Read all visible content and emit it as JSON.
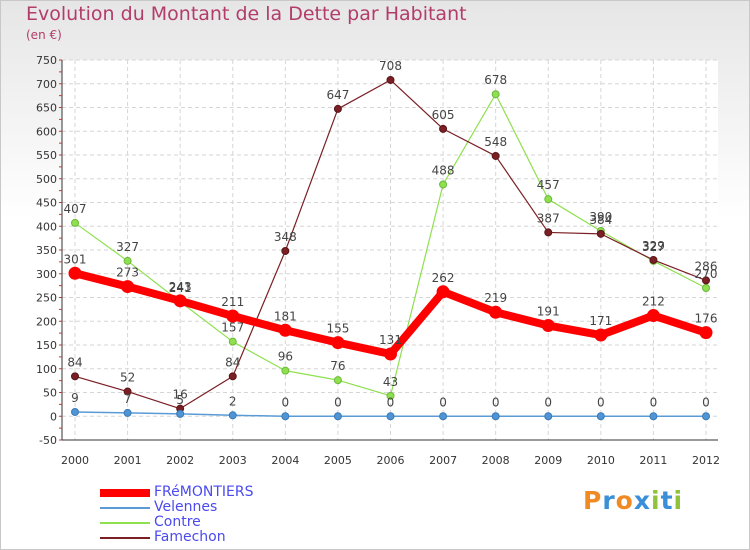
{
  "title": "Evolution du Montant de la Dette par Habitant",
  "unit": "(en €)",
  "logo": "Proxiti",
  "chart_data": {
    "type": "line",
    "title": "Evolution du Montant de la Dette par Habitant",
    "subtitle": "(en €)",
    "categories": [
      "2000",
      "2001",
      "2002",
      "2003",
      "2004",
      "2005",
      "2006",
      "2007",
      "2008",
      "2009",
      "2010",
      "2011",
      "2012"
    ],
    "y_ticks": [
      -50,
      0,
      50,
      100,
      150,
      200,
      250,
      300,
      350,
      400,
      450,
      500,
      550,
      600,
      650,
      700,
      750
    ],
    "ylim": [
      -50,
      750
    ],
    "grid": true,
    "legend_position": "bottom-left",
    "series": [
      {
        "name": "FRéMONTIERS",
        "color": "#ff0000",
        "values": [
          301,
          273,
          243,
          211,
          181,
          155,
          131,
          262,
          219,
          191,
          171,
          212,
          176
        ]
      },
      {
        "name": "Velennes",
        "color": "#5a9bd5",
        "values": [
          9,
          7,
          5,
          2,
          0,
          0,
          0,
          0,
          0,
          0,
          0,
          0,
          0
        ]
      },
      {
        "name": "Contre",
        "color": "#8fe04f",
        "values": [
          407,
          327,
          241,
          157,
          96,
          76,
          43,
          488,
          678,
          457,
          390,
          327,
          270
        ]
      },
      {
        "name": "Famechon",
        "color": "#7a1f24",
        "values": [
          84,
          52,
          16,
          84,
          348,
          647,
          708,
          605,
          548,
          387,
          384,
          329,
          286
        ]
      }
    ]
  }
}
